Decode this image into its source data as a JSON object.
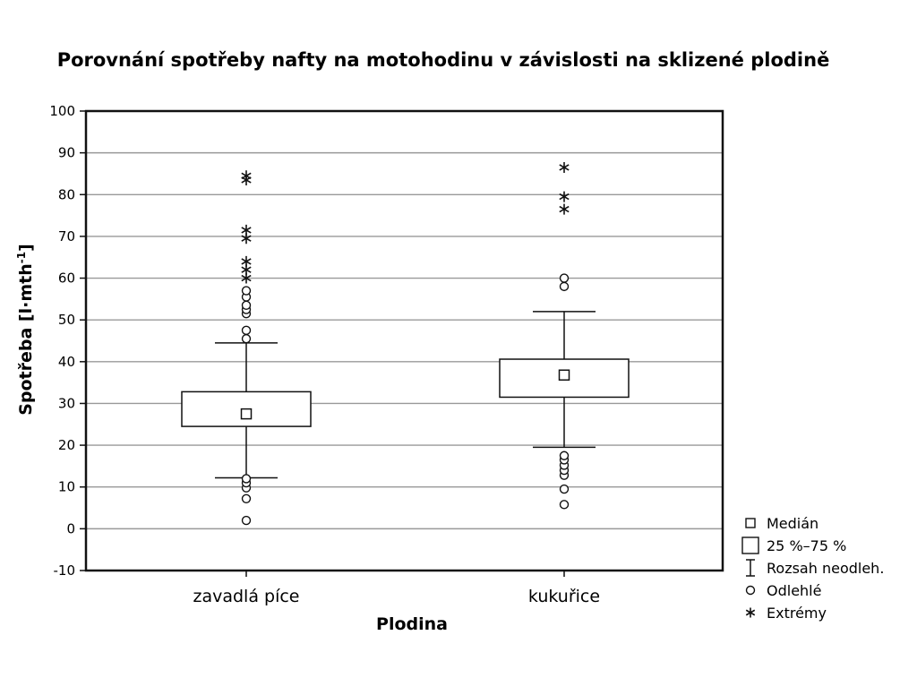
{
  "chart_data": {
    "type": "box",
    "title": "Porovnání spotřeby nafty na motohodinu v závislosti na sklizené plodině",
    "xlabel": "Plodina",
    "ylabel_main": "Spotřeba [l·mth",
    "ylabel_sup": "-1",
    "ylabel_close": "]",
    "ylim": [
      -10,
      100
    ],
    "yticks": [
      "100",
      "90",
      "80",
      "70",
      "60",
      "50",
      "40",
      "30",
      "20",
      "10",
      "0",
      "-10"
    ],
    "grid": true,
    "legend_position": "right-bottom",
    "categories": [
      "zavadlá píce",
      "kukuřice"
    ],
    "boxes": [
      {
        "category": "zavadlá píce",
        "median": 27.5,
        "q1": 24.5,
        "q3": 32.8,
        "whisker_low": 12.2,
        "whisker_high": 44.5,
        "outliers": [
          2,
          7.2,
          9.8,
          11,
          12,
          45.5,
          47.5,
          51.5,
          52.5,
          53.5,
          55.5,
          57
        ],
        "extremes": [
          84.5,
          83.5,
          71.5,
          69.5,
          64,
          62,
          60
        ]
      },
      {
        "category": "kukuřice",
        "median": 36.8,
        "q1": 31.5,
        "q3": 40.6,
        "whisker_low": 19.5,
        "whisker_high": 52,
        "outliers": [
          5.8,
          9.5,
          12.8,
          14,
          15.2,
          16.5,
          17.5,
          58,
          60
        ],
        "extremes": [
          86.5,
          79.5,
          76.5
        ]
      }
    ],
    "legend": [
      {
        "symbol": "median",
        "label": "Medián"
      },
      {
        "symbol": "box",
        "label": "25 %–75 %"
      },
      {
        "symbol": "whisker",
        "label": "Rozsah neodleh."
      },
      {
        "symbol": "outlier",
        "label": "Odlehlé"
      },
      {
        "symbol": "extreme",
        "label": "Extrémy"
      }
    ]
  }
}
